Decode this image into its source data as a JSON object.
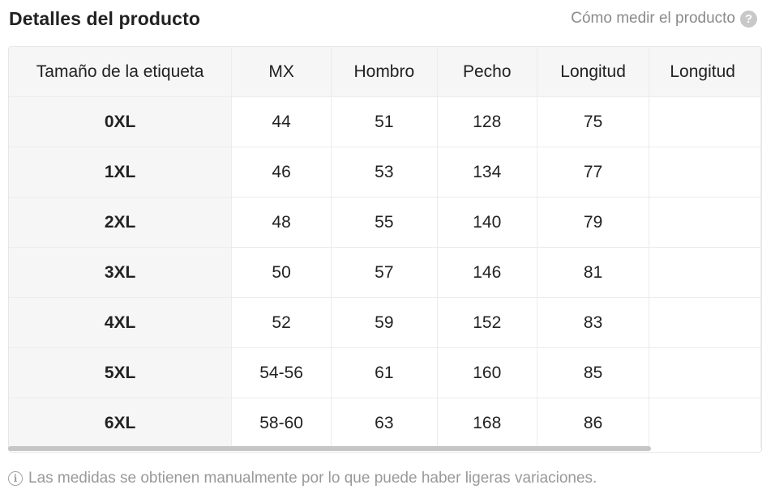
{
  "header": {
    "title": "Detalles del producto",
    "measure_link": "Cómo medir el producto",
    "help_icon": "?"
  },
  "table": {
    "columns": [
      "Tamaño de la etiqueta",
      "MX",
      "Hombro",
      "Pecho",
      "Longitud",
      "Longitud"
    ],
    "rows": [
      [
        "0XL",
        "44",
        "51",
        "128",
        "75",
        ""
      ],
      [
        "1XL",
        "46",
        "53",
        "134",
        "77",
        ""
      ],
      [
        "2XL",
        "48",
        "55",
        "140",
        "79",
        ""
      ],
      [
        "3XL",
        "50",
        "57",
        "146",
        "81",
        ""
      ],
      [
        "4XL",
        "52",
        "59",
        "152",
        "83",
        ""
      ],
      [
        "5XL",
        "54-56",
        "61",
        "160",
        "85",
        ""
      ],
      [
        "6XL",
        "58-60",
        "63",
        "168",
        "86",
        ""
      ]
    ]
  },
  "footnote": {
    "icon": "i",
    "text": "Las medidas se obtienen manualmente por lo que puede haber ligeras variaciones."
  },
  "icons": {
    "help": "help-circle-icon",
    "info": "info-circle-icon"
  }
}
